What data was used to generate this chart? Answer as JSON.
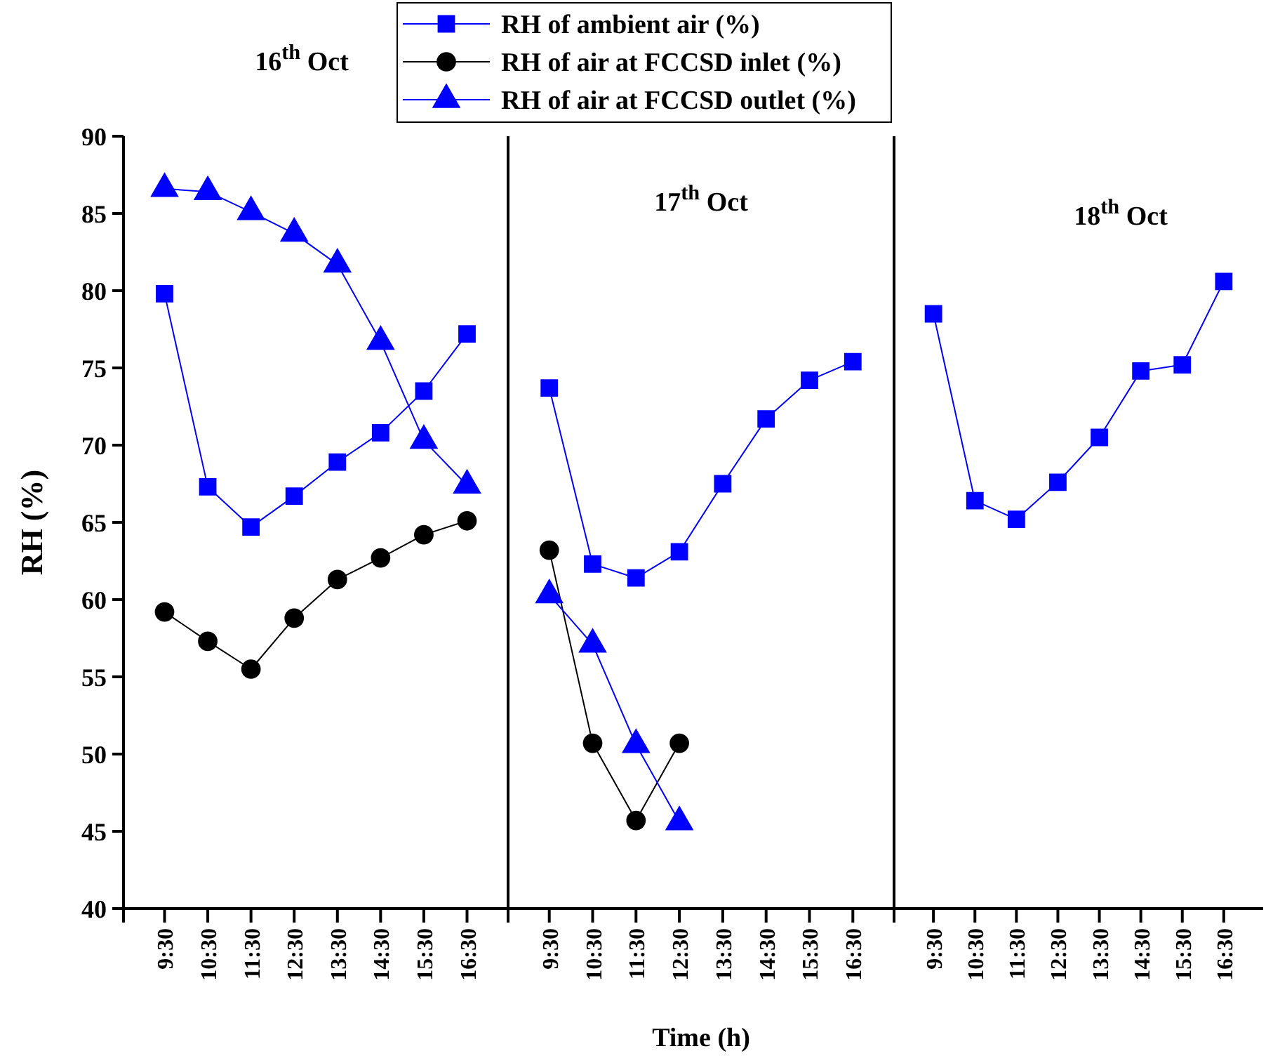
{
  "chart_data": [
    {
      "type": "line",
      "categories": [
        "9:30",
        "10:30",
        "11:30",
        "12:30",
        "13:30",
        "14:30",
        "15:30",
        "16:30"
      ],
      "ylabel": "RH (%)",
      "ylim": [
        40,
        90
      ],
      "yticks": [
        40,
        45,
        50,
        55,
        60,
        65,
        70,
        75,
        80,
        85,
        90
      ],
      "legend": "top",
      "annotations": [
        "16$^{th}$ Oct"
      ],
      "series": [
        {
          "name": "RH of ambient air (%)",
          "color": "#0000ff",
          "marker": "square",
          "values": [
            79.8,
            67.3,
            64.7,
            66.7,
            68.9,
            70.8,
            73.5,
            77.2
          ]
        },
        {
          "name": "RH of air at FCCSD inlet (%)",
          "color": "#000000",
          "marker": "circle",
          "values": [
            59.2,
            57.3,
            55.5,
            58.8,
            61.3,
            62.7,
            64.2,
            65.1
          ]
        },
        {
          "name": "RH of air at FCCSD outlet (%)",
          "color": "#0000ff",
          "marker": "triangle",
          "values": [
            86.6,
            86.4,
            85.1,
            83.7,
            81.7,
            76.7,
            70.3,
            67.4
          ]
        }
      ]
    },
    {
      "type": "line",
      "categories": [
        "9:30",
        "10:30",
        "11:30",
        "12:30",
        "13:30",
        "14:30",
        "15:30",
        "16:30"
      ],
      "xlabel": "Time (h)",
      "ylim": [
        40,
        90
      ],
      "tick_labels": "x",
      "annotations": [
        "17$^{th}$ Oct"
      ],
      "series": [
        {
          "color": "#0000ff",
          "marker": "square",
          "values": [
            73.7,
            62.3,
            61.4,
            63.1,
            67.5,
            71.7,
            74.2,
            75.4
          ]
        },
        {
          "color": "#000000",
          "marker": "circle",
          "values": [
            63.2,
            50.7,
            45.7,
            50.7,
            null,
            null,
            null,
            null
          ]
        },
        {
          "color": "#0000ff",
          "marker": "triangle",
          "values": [
            60.3,
            57.1,
            50.6,
            45.6,
            null,
            null,
            null,
            null
          ]
        }
      ]
    },
    {
      "type": "line",
      "categories": [
        "9:30",
        "10:30",
        "11:30",
        "12:30",
        "13:30",
        "14:30",
        "15:30",
        "16:30"
      ],
      "ylim": [
        40,
        90
      ],
      "tick_labels": "x",
      "annotations": [
        "18$^{th}$ Oct"
      ],
      "series": [
        {
          "color": "#0000ff",
          "marker": "square",
          "values": [
            78.5,
            66.4,
            65.2,
            67.6,
            70.5,
            74.8,
            75.2,
            80.6
          ]
        }
      ]
    }
  ]
}
